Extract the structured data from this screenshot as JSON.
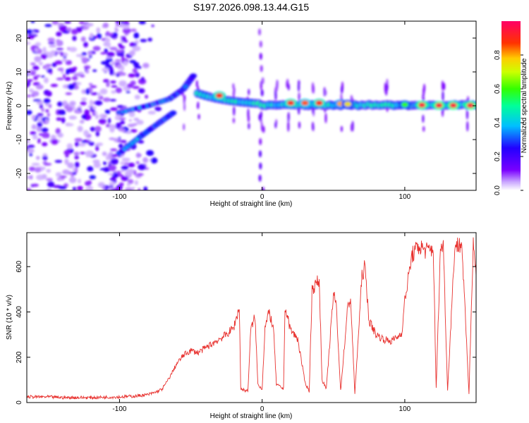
{
  "title": "S197.2026.098.13.44.G15",
  "colors": {
    "line": "#e8322f",
    "axis": "#000000",
    "colorbar": [
      "#ff0066",
      "#ff0000",
      "#ff8800",
      "#ffff00",
      "#00ff00",
      "#00ffff",
      "#0000ff",
      "#9900ff",
      "#ffffff"
    ]
  },
  "chart_data": [
    {
      "type": "heatmap",
      "title": "S197.2026.098.13.44.G15",
      "xlabel": "Height of straight line (km)",
      "ylabel": "Frequency (Hz)",
      "xlim": [
        -165,
        150
      ],
      "ylim": [
        -25,
        25
      ],
      "xticks": [
        -100,
        0,
        100
      ],
      "xtick_labels": [
        "-100",
        "0",
        "100"
      ],
      "yticks": [
        -20,
        -10,
        0,
        10,
        20
      ],
      "ytick_labels": [
        "-20",
        "-10",
        "0",
        "10",
        "20"
      ],
      "colorbar": {
        "label": "Normalized spectral amplitude",
        "range": [
          0,
          1
        ],
        "ticks": [
          0.0,
          0.2,
          0.4,
          0.6,
          0.8
        ],
        "tick_labels": [
          "0.0",
          "0.2",
          "0.4",
          "0.6",
          "0.8"
        ]
      },
      "features": {
        "noise_region_km": [
          -165,
          -70
        ],
        "rising_branch": [
          [
            -100,
            -2
          ],
          [
            -80,
            0
          ],
          [
            -65,
            2
          ],
          [
            -55,
            5
          ],
          [
            -48,
            9
          ]
        ],
        "falling_branch": [
          [
            -100,
            -14
          ],
          [
            -85,
            -9
          ],
          [
            -72,
            -5
          ],
          [
            -62,
            -2
          ]
        ],
        "main_line_freq_hz": 0,
        "main_line_km": [
          -45,
          150
        ],
        "hot_spots": [
          {
            "x": -30,
            "y": 3,
            "amp": 0.9
          },
          {
            "x": 20,
            "y": 0.8,
            "amp": 0.9
          },
          {
            "x": 30,
            "y": 0.8,
            "amp": 0.85
          },
          {
            "x": 40,
            "y": 0.8,
            "amp": 0.9
          },
          {
            "x": 55,
            "y": 0.6,
            "amp": 0.8
          },
          {
            "x": 60,
            "y": 0.5,
            "amp": 0.75
          },
          {
            "x": 100,
            "y": 0.3,
            "amp": 0.6
          },
          {
            "x": 112,
            "y": 0.2,
            "amp": 0.95
          },
          {
            "x": 124,
            "y": 0.1,
            "amp": 0.95
          },
          {
            "x": 134,
            "y": 0.1,
            "amp": 0.95
          },
          {
            "x": 146,
            "y": 0.1,
            "amp": 0.95
          }
        ],
        "spikes_km": [
          -55,
          -45,
          -20,
          -10,
          0,
          10,
          18,
          26,
          36,
          44,
          56,
          63,
          87,
          113,
          127,
          144
        ]
      }
    },
    {
      "type": "line",
      "xlabel": "Height of straight line (km)",
      "ylabel": "SNR (10 * v/v)",
      "xlim": [
        -165,
        150
      ],
      "ylim": [
        0,
        750
      ],
      "xticks": [
        -100,
        0,
        100
      ],
      "xtick_labels": [
        "-100",
        "0",
        "100"
      ],
      "yticks": [
        0,
        200,
        400,
        600
      ],
      "ytick_labels": [
        "0",
        "200",
        "400",
        "600"
      ],
      "series": [
        {
          "name": "SNR",
          "x": [
            -165,
            -150,
            -140,
            -120,
            -100,
            -90,
            -80,
            -75,
            -70,
            -65,
            -60,
            -55,
            -50,
            -45,
            -40,
            -35,
            -30,
            -25,
            -20,
            -16,
            -15,
            -10,
            -8,
            -5,
            -3,
            0,
            2,
            5,
            8,
            10,
            15,
            16,
            20,
            25,
            30,
            33,
            35,
            40,
            42,
            45,
            50,
            52,
            55,
            60,
            62,
            65,
            70,
            72,
            75,
            80,
            85,
            90,
            95,
            98,
            100,
            105,
            110,
            115,
            120,
            122,
            125,
            127,
            130,
            135,
            140,
            145,
            148,
            150
          ],
          "values": [
            25,
            25,
            22,
            22,
            25,
            28,
            35,
            45,
            60,
            110,
            170,
            210,
            230,
            220,
            240,
            260,
            280,
            300,
            330,
            420,
            60,
            50,
            320,
            380,
            80,
            60,
            330,
            400,
            320,
            80,
            60,
            420,
            320,
            280,
            90,
            50,
            500,
            540,
            100,
            60,
            480,
            430,
            50,
            420,
            460,
            40,
            560,
            600,
            360,
            300,
            280,
            270,
            290,
            310,
            450,
            650,
            690,
            670,
            680,
            60,
            680,
            700,
            50,
            690,
            700,
            40,
            720,
            560
          ]
        }
      ]
    }
  ]
}
